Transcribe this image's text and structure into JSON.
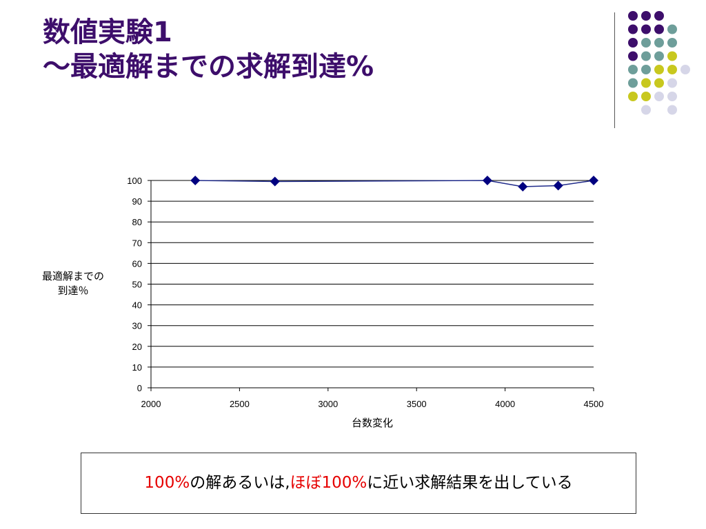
{
  "slide": {
    "title_line1": "数値実験1",
    "title_line2": "～最適解までの求解到達%",
    "title_color": "#3d0e6b"
  },
  "note": {
    "part1": "100%",
    "part2": "の解あるいは,",
    "part3": "ほぼ100%",
    "part4": "に近い求解結果を出している",
    "highlight_color": "#e60000"
  },
  "chart_data": {
    "type": "line",
    "x": [
      2250,
      2700,
      3900,
      4100,
      4300,
      4500
    ],
    "series": [
      {
        "values": [
          100,
          99.5,
          100,
          97,
          97.5,
          100
        ]
      }
    ],
    "xlabel": "台数変化",
    "ylabel_lines": [
      "最適解までの",
      "到達％"
    ],
    "xlim": [
      2000,
      4500
    ],
    "ylim": [
      0,
      100
    ],
    "x_ticks": [
      2000,
      2500,
      3000,
      3500,
      4000,
      4500
    ],
    "y_ticks": [
      0,
      10,
      20,
      30,
      40,
      50,
      60,
      70,
      80,
      90,
      100
    ],
    "grid": "horizontal",
    "marker": "diamond",
    "line_color": "#1f2a8a",
    "marker_color": "#000080"
  }
}
